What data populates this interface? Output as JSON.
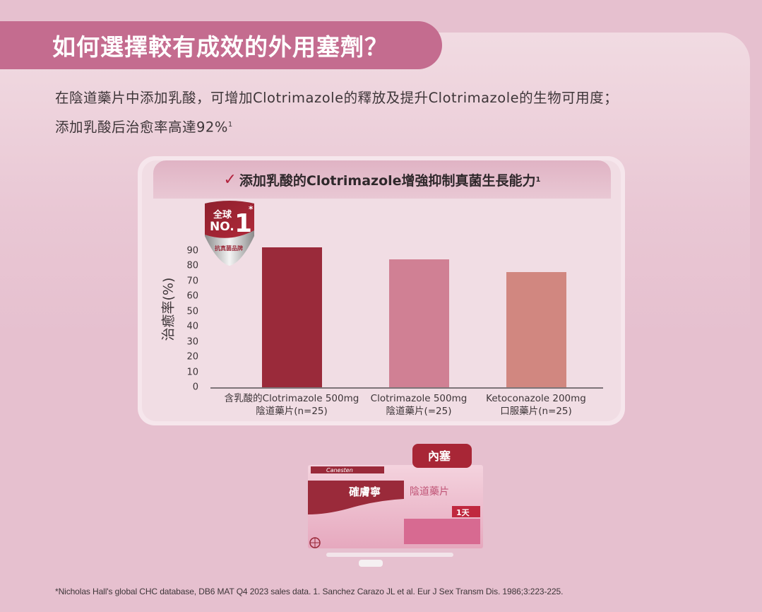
{
  "header": {
    "title": "如何選擇較有成效的外用塞劑？"
  },
  "intro": {
    "line1": "在陰道藥片中添加乳酸，可增加Clotrimazole的釋放及提升Clotrimazole的生物可用度；",
    "line2": "添加乳酸后治愈率高達92%",
    "line2_sup": "1"
  },
  "chart_card": {
    "check_icon": "✓",
    "title": "添加乳酸的Clotrimazole增強抑制真菌生長能力",
    "title_sup": "1",
    "badge": {
      "line1": "全球",
      "line2": "NO.",
      "number": "1",
      "asterisk": "*",
      "subtitle": "抗真菌品牌"
    }
  },
  "chart_data": {
    "type": "bar",
    "title": "添加乳酸的Clotrimazole增強抑制真菌生長能力",
    "xlabel": "",
    "ylabel": "治癒率(%)",
    "ylim": [
      0,
      90
    ],
    "yticks": [
      0,
      10,
      20,
      30,
      40,
      50,
      60,
      70,
      80,
      90
    ],
    "grid": false,
    "legend": null,
    "categories": [
      "含乳酸的Clotrimazole 500mg 陰道藥片(n=25)",
      "Clotrimazole 500mg 陰道藥片(=25)",
      "Ketoconazole 200mg 口服藥片(n=25)"
    ],
    "category_lines": [
      [
        "含乳酸的Clotrimazole 500mg",
        "陰道藥片(n=25)"
      ],
      [
        "Clotrimazole 500mg",
        "陰道藥片(=25)"
      ],
      [
        "Ketoconazole 200mg",
        "口服藥片(n=25)"
      ]
    ],
    "values": [
      92,
      84,
      76
    ],
    "colors": [
      "#9a2a3a",
      "#d08094",
      "#d18780"
    ]
  },
  "product": {
    "tag": "內塞",
    "brand_en": "Canesten",
    "brand_zh": "確膚寧",
    "product_name": "陰道藥片",
    "duration": "1天"
  },
  "footnote": "*Nicholas Hall's global CHC database, DB6 MAT Q4 2023 sales data.    1.  Sanchez Carazo JL et al. Eur J Sex Transm Dis. 1986;3:223-225.",
  "colors": {
    "background": "#e6c0cf",
    "title_pill": "#c46c8f",
    "accent": "#b3233e"
  }
}
